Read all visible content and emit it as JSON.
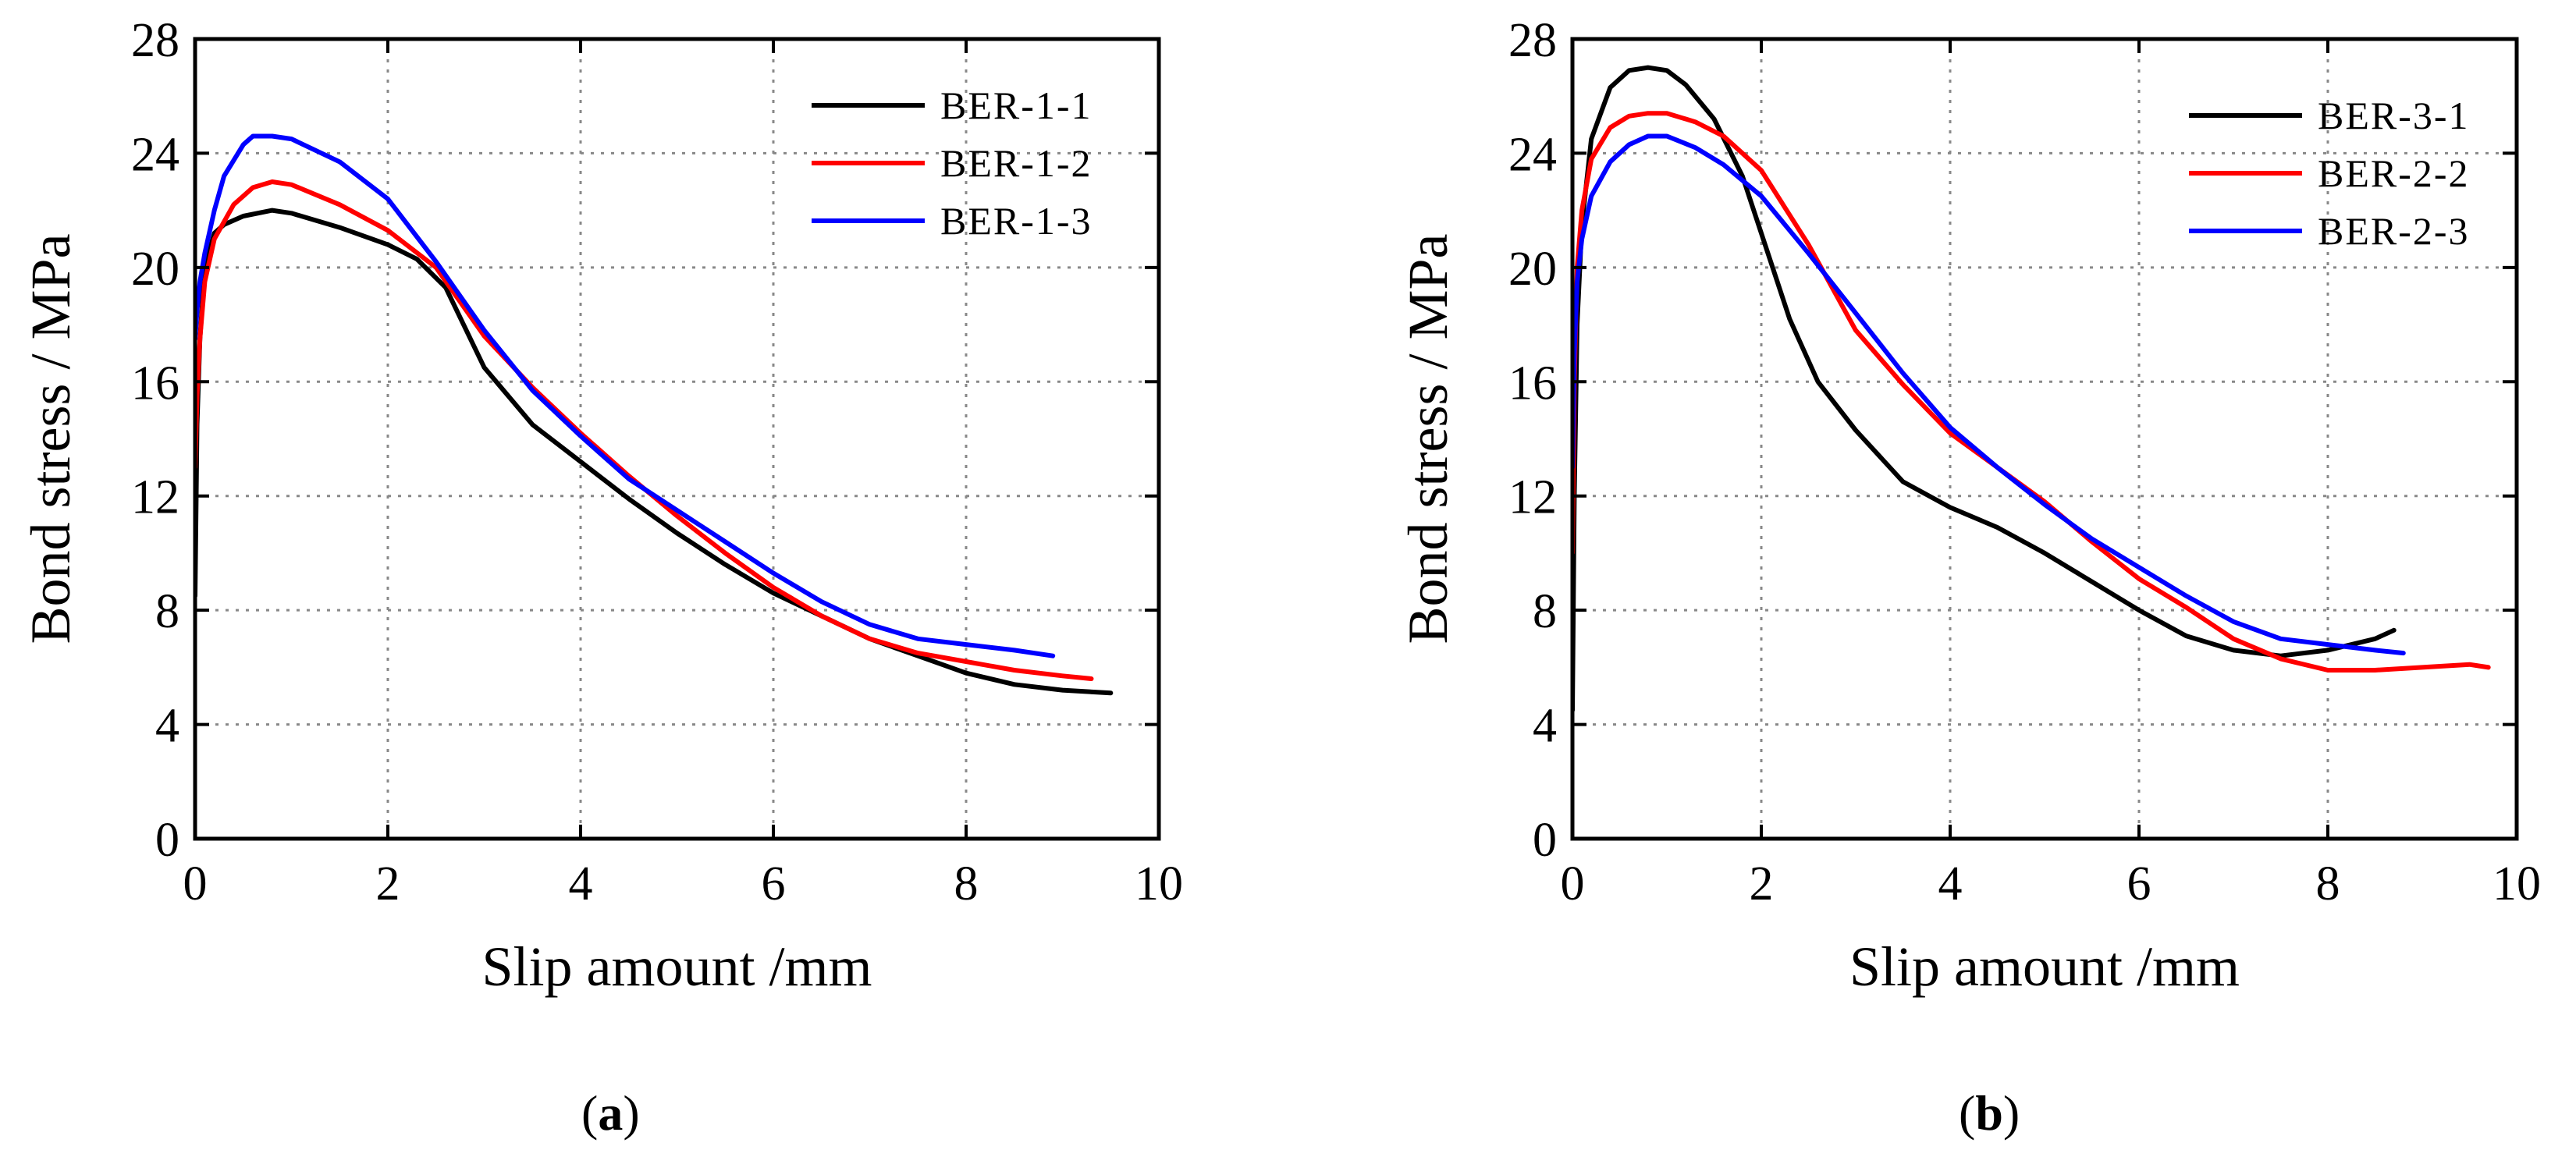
{
  "figure": {
    "captions": [
      "a",
      "b"
    ]
  },
  "chart_data": [
    {
      "type": "line",
      "panel_label": "a",
      "xlabel": "Slip amount /mm",
      "ylabel": "Bond stress / MPa",
      "xlim": [
        0,
        10
      ],
      "ylim": [
        0,
        28
      ],
      "xticks": [
        0,
        2,
        4,
        6,
        8,
        10
      ],
      "yticks": [
        0,
        4,
        8,
        12,
        16,
        20,
        24,
        28
      ],
      "grid": true,
      "legend_position": "top-right",
      "series": [
        {
          "name": "BER-1-1",
          "color": "#000000",
          "x": [
            0.0,
            0.02,
            0.05,
            0.1,
            0.2,
            0.3,
            0.5,
            0.8,
            1.0,
            1.5,
            2.0,
            2.3,
            2.6,
            3.0,
            3.5,
            4.0,
            4.5,
            5.0,
            5.5,
            6.0,
            6.5,
            7.0,
            7.5,
            8.0,
            8.5,
            9.0,
            9.5
          ],
          "y": [
            8.5,
            14.5,
            17.5,
            20.0,
            21.2,
            21.5,
            21.8,
            22.0,
            21.9,
            21.4,
            20.8,
            20.3,
            19.3,
            16.5,
            14.5,
            13.2,
            11.9,
            10.7,
            9.6,
            8.6,
            7.8,
            7.0,
            6.4,
            5.8,
            5.4,
            5.2,
            5.1
          ]
        },
        {
          "name": "BER-1-2",
          "color": "#ff0000",
          "x": [
            0.0,
            0.02,
            0.05,
            0.1,
            0.2,
            0.4,
            0.6,
            0.8,
            1.0,
            1.5,
            2.0,
            2.5,
            3.0,
            3.5,
            4.0,
            4.5,
            5.0,
            5.5,
            6.0,
            6.5,
            7.0,
            7.5,
            8.0,
            8.5,
            9.0,
            9.3
          ],
          "y": [
            13.0,
            15.5,
            17.5,
            19.5,
            21.0,
            22.2,
            22.8,
            23.0,
            22.9,
            22.2,
            21.3,
            20.0,
            17.6,
            15.8,
            14.2,
            12.7,
            11.3,
            10.0,
            8.8,
            7.8,
            7.0,
            6.5,
            6.2,
            5.9,
            5.7,
            5.6
          ]
        },
        {
          "name": "BER-1-3",
          "color": "#0000ff",
          "x": [
            0.0,
            0.02,
            0.05,
            0.1,
            0.2,
            0.3,
            0.5,
            0.6,
            0.8,
            1.0,
            1.5,
            2.0,
            2.5,
            3.0,
            3.5,
            4.0,
            4.5,
            5.0,
            5.5,
            6.0,
            6.5,
            7.0,
            7.5,
            8.0,
            8.5,
            8.9
          ],
          "y": [
            17.5,
            18.5,
            19.5,
            20.5,
            22.0,
            23.2,
            24.3,
            24.6,
            24.6,
            24.5,
            23.7,
            22.4,
            20.2,
            17.8,
            15.7,
            14.1,
            12.6,
            11.5,
            10.4,
            9.3,
            8.3,
            7.5,
            7.0,
            6.8,
            6.6,
            6.4
          ]
        }
      ]
    },
    {
      "type": "line",
      "panel_label": "b",
      "xlabel": "Slip amount /mm",
      "ylabel": "Bond stress / MPa",
      "xlim": [
        0,
        10
      ],
      "ylim": [
        0,
        28
      ],
      "xticks": [
        0,
        2,
        4,
        6,
        8,
        10
      ],
      "yticks": [
        0,
        4,
        8,
        12,
        16,
        20,
        24,
        28
      ],
      "grid": true,
      "legend_position": "top-right",
      "series": [
        {
          "name": "BER-3-1",
          "color": "#000000",
          "x": [
            0.0,
            0.02,
            0.05,
            0.1,
            0.2,
            0.4,
            0.6,
            0.8,
            1.0,
            1.2,
            1.5,
            1.8,
            2.0,
            2.3,
            2.6,
            3.0,
            3.5,
            4.0,
            4.5,
            5.0,
            5.5,
            6.0,
            6.5,
            7.0,
            7.5,
            8.0,
            8.5,
            8.7
          ],
          "y": [
            4.5,
            12.0,
            18.0,
            21.5,
            24.5,
            26.3,
            26.9,
            27.0,
            26.9,
            26.4,
            25.2,
            23.2,
            21.2,
            18.2,
            16.0,
            14.3,
            12.5,
            11.6,
            10.9,
            10.0,
            9.0,
            8.0,
            7.1,
            6.6,
            6.4,
            6.6,
            7.0,
            7.3
          ]
        },
        {
          "name": "BER-2-2",
          "color": "#ff0000",
          "x": [
            0.0,
            0.02,
            0.05,
            0.1,
            0.2,
            0.4,
            0.6,
            0.8,
            1.0,
            1.3,
            1.6,
            2.0,
            2.5,
            3.0,
            3.5,
            4.0,
            4.5,
            5.0,
            5.5,
            6.0,
            6.5,
            7.0,
            7.5,
            8.0,
            8.5,
            9.0,
            9.5,
            9.7
          ],
          "y": [
            10.0,
            16.0,
            20.0,
            22.0,
            23.8,
            24.9,
            25.3,
            25.4,
            25.4,
            25.1,
            24.6,
            23.4,
            20.8,
            17.8,
            15.9,
            14.2,
            13.0,
            11.8,
            10.4,
            9.1,
            8.1,
            7.0,
            6.3,
            5.9,
            5.9,
            6.0,
            6.1,
            6.0
          ]
        },
        {
          "name": "BER-2-3",
          "color": "#0000ff",
          "x": [
            0.0,
            0.02,
            0.05,
            0.1,
            0.2,
            0.4,
            0.6,
            0.8,
            1.0,
            1.3,
            1.6,
            2.0,
            2.5,
            3.0,
            3.5,
            4.0,
            4.5,
            5.0,
            5.5,
            6.0,
            6.5,
            7.0,
            7.5,
            8.0,
            8.5,
            8.8
          ],
          "y": [
            13.0,
            17.0,
            19.5,
            21.0,
            22.5,
            23.7,
            24.3,
            24.6,
            24.6,
            24.2,
            23.6,
            22.5,
            20.5,
            18.4,
            16.3,
            14.4,
            13.0,
            11.7,
            10.5,
            9.5,
            8.5,
            7.6,
            7.0,
            6.8,
            6.6,
            6.5
          ]
        }
      ]
    }
  ]
}
